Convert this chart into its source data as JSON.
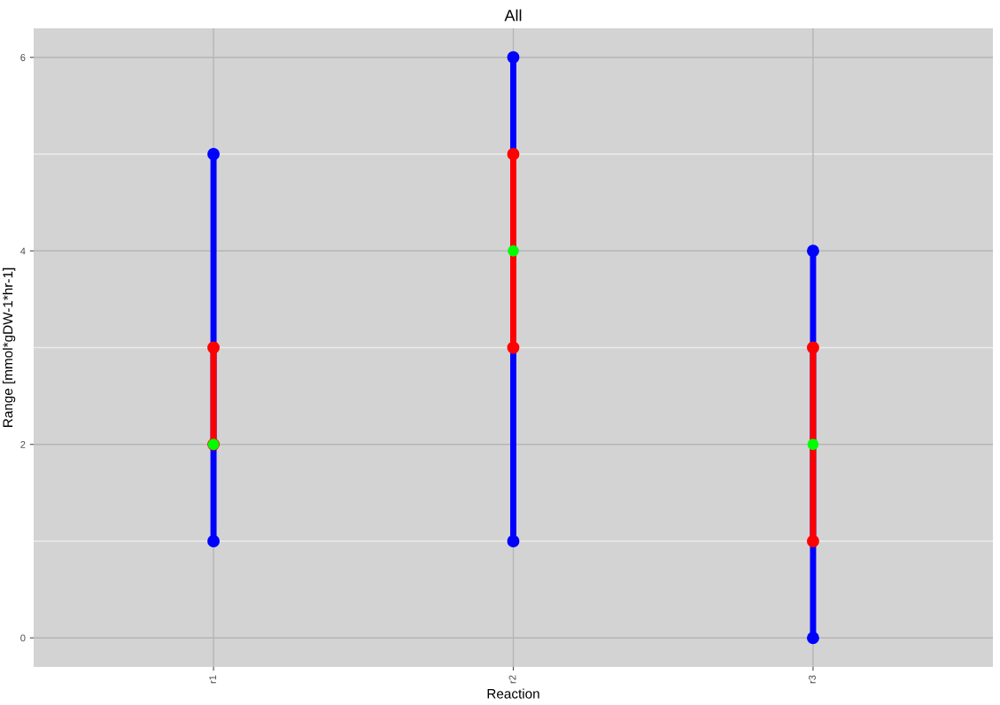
{
  "chart_data": {
    "type": "line",
    "title": "All",
    "xlabel": "Reaction",
    "ylabel": "Range [mmol*gDW-1*hr-1]",
    "categories": [
      "r1",
      "r2",
      "r3"
    ],
    "series": [
      {
        "color": "#0000ff",
        "x": [
          "r1",
          "r1"
        ],
        "values": [
          1,
          5
        ]
      },
      {
        "color": "#0000ff",
        "x": [
          "r2",
          "r2"
        ],
        "values": [
          1,
          6
        ]
      },
      {
        "color": "#0000ff",
        "x": [
          "r3",
          "r3"
        ],
        "values": [
          0,
          4
        ]
      },
      {
        "color": "#ff0000",
        "x": [
          "r1",
          "r1"
        ],
        "values": [
          2,
          3
        ]
      },
      {
        "color": "#ff0000",
        "x": [
          "r2",
          "r2"
        ],
        "values": [
          3,
          5
        ]
      },
      {
        "color": "#ff0000",
        "x": [
          "r3",
          "r3"
        ],
        "values": [
          1,
          3
        ]
      },
      {
        "type": "scatter",
        "color": "#00ff00",
        "x": [
          "r1",
          "r2",
          "r3"
        ],
        "values": [
          2,
          4,
          2
        ]
      }
    ],
    "ylim": [
      -0.3,
      6.3
    ],
    "yticks": [
      0,
      2,
      4,
      6
    ],
    "grid": true,
    "marker": "circle"
  }
}
